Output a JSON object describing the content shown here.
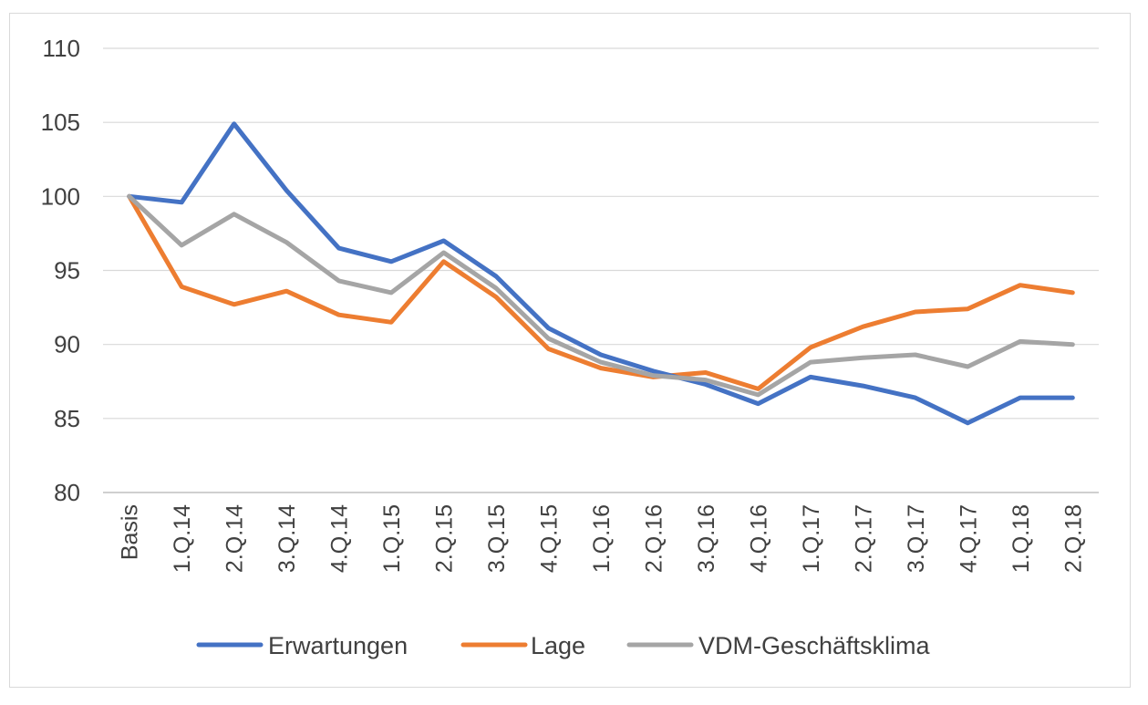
{
  "chart_data": {
    "type": "line",
    "title": "",
    "xlabel": "",
    "ylabel": "",
    "ylim": [
      80,
      110
    ],
    "yticks": [
      "80",
      "85",
      "90",
      "95",
      "100",
      "105",
      "110"
    ],
    "grid": true,
    "legend_position": "bottom",
    "categories": [
      "Basis",
      "1.Q.14",
      "2.Q.14",
      "3.Q.14",
      "4.Q.14",
      "1.Q.15",
      "2.Q.15",
      "3.Q.15",
      "4.Q.15",
      "1.Q.16",
      "2.Q.16",
      "3.Q.16",
      "4.Q.16",
      "1.Q.17",
      "2.Q.17",
      "3.Q.17",
      "4.Q.17",
      "1.Q.18",
      "2.Q.18"
    ],
    "series": [
      {
        "name": "Erwartungen",
        "color": "#4472c4",
        "values": [
          100.0,
          99.6,
          104.9,
          100.4,
          96.5,
          95.6,
          97.0,
          94.6,
          91.1,
          89.3,
          88.2,
          87.3,
          86.0,
          87.8,
          87.2,
          86.4,
          84.7,
          86.4,
          86.4
        ]
      },
      {
        "name": "Lage",
        "color": "#ed7d31",
        "values": [
          100.0,
          93.9,
          92.7,
          93.6,
          92.0,
          91.5,
          95.6,
          93.2,
          89.7,
          88.4,
          87.8,
          88.1,
          87.0,
          89.8,
          91.2,
          92.2,
          92.4,
          94.0,
          93.5
        ]
      },
      {
        "name": "VDM-Geschäftsklima",
        "color": "#a5a5a5",
        "values": [
          100.0,
          96.7,
          98.8,
          96.9,
          94.3,
          93.5,
          96.2,
          93.8,
          90.4,
          88.8,
          87.9,
          87.6,
          86.6,
          88.8,
          89.1,
          89.3,
          88.5,
          90.2,
          90.0
        ]
      }
    ]
  }
}
